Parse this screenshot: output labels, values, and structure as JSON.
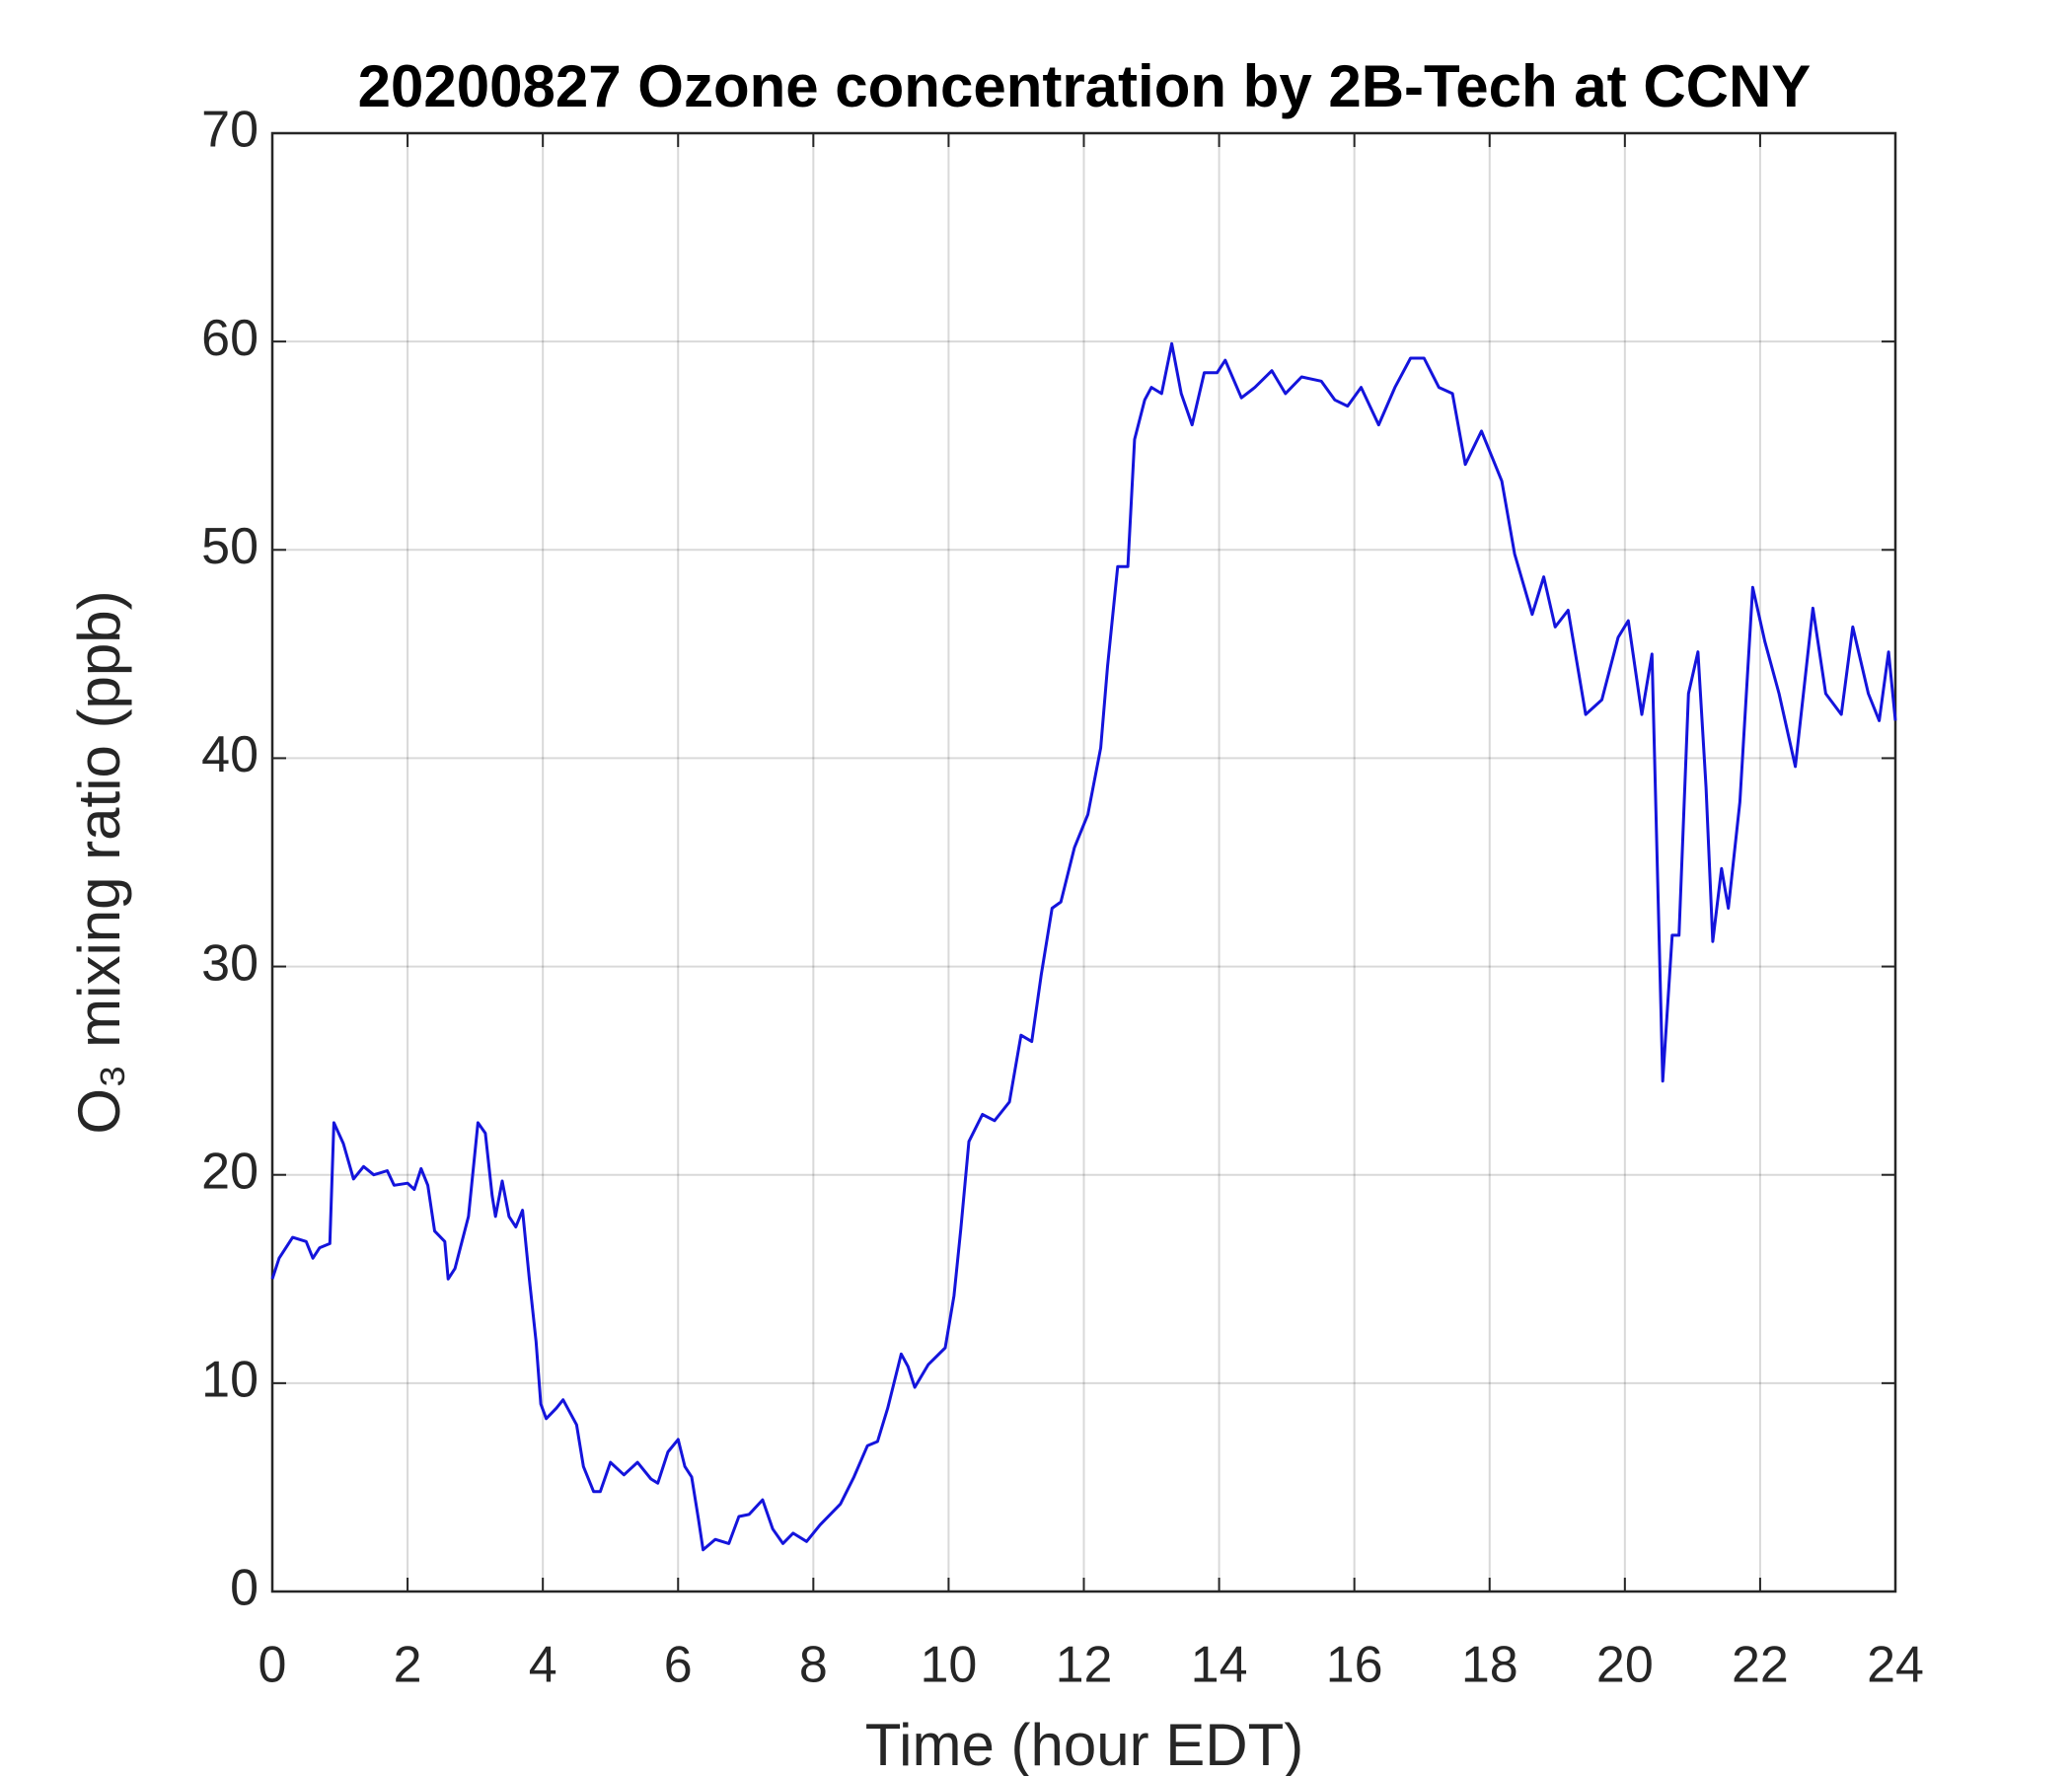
{
  "chart_data": {
    "type": "line",
    "title": "20200827 Ozone concentration by 2B-Tech at CCNY",
    "xlabel": "Time (hour EDT)",
    "ylabel": "O₃ mixing ratio (ppb)",
    "x": [
      0,
      0.1,
      0.3,
      0.5,
      0.6,
      0.7,
      0.85,
      0.91,
      1.05,
      1.2,
      1.35,
      1.5,
      1.7,
      1.8,
      2.0,
      2.1,
      2.2,
      2.3,
      2.4,
      2.55,
      2.6,
      2.7,
      2.9,
      3.04,
      3.15,
      3.25,
      3.3,
      3.4,
      3.5,
      3.6,
      3.7,
      3.8,
      3.9,
      3.97,
      4.05,
      4.2,
      4.3,
      4.5,
      4.6,
      4.75,
      4.85,
      5.0,
      5.2,
      5.4,
      5.6,
      5.7,
      5.85,
      6.0,
      6.1,
      6.2,
      6.3,
      6.37,
      6.55,
      6.75,
      6.9,
      7.05,
      7.25,
      7.4,
      7.55,
      7.7,
      7.9,
      8.1,
      8.4,
      8.6,
      8.8,
      8.95,
      9.1,
      9.3,
      9.4,
      9.5,
      9.7,
      9.95,
      10.08,
      10.18,
      10.3,
      10.5,
      10.68,
      10.9,
      11.07,
      11.23,
      11.37,
      11.53,
      11.66,
      11.86,
      12.06,
      12.25,
      12.35,
      12.5,
      12.65,
      12.75,
      12.9,
      13.0,
      13.15,
      13.3,
      13.44,
      13.6,
      13.78,
      13.97,
      14.09,
      14.33,
      14.53,
      14.78,
      14.98,
      15.22,
      15.51,
      15.71,
      15.9,
      16.1,
      16.36,
      16.6,
      16.83,
      17.03,
      17.25,
      17.45,
      17.64,
      17.88,
      18.18,
      18.37,
      18.63,
      18.8,
      18.97,
      19.16,
      19.42,
      19.66,
      19.9,
      20.05,
      20.25,
      20.4,
      20.56,
      20.7,
      20.8,
      20.94,
      21.08,
      21.2,
      21.3,
      21.43,
      21.53,
      21.7,
      21.89,
      22.07,
      22.28,
      22.52,
      22.78,
      22.97,
      23.2,
      23.37,
      23.6,
      23.76,
      23.9,
      24
    ],
    "series": [
      {
        "name": "O3",
        "color": "#1414dc",
        "values": [
          15,
          16,
          17,
          16.8,
          16,
          16.5,
          16.7,
          22.5,
          21.5,
          19.8,
          20.4,
          20,
          20.2,
          19.5,
          19.6,
          19.3,
          20.3,
          19.5,
          17.3,
          16.8,
          15,
          15.5,
          18,
          22.5,
          22,
          19,
          18,
          19.7,
          18,
          17.5,
          18.3,
          15,
          12,
          9,
          8.3,
          8.8,
          9.2,
          8,
          6,
          4.8,
          4.8,
          6.2,
          5.6,
          6.2,
          5.4,
          5.2,
          6.7,
          7.3,
          6,
          5.5,
          3.5,
          2,
          2.5,
          2.3,
          3.6,
          3.7,
          4.4,
          3,
          2.3,
          2.8,
          2.4,
          3.2,
          4.2,
          5.5,
          7,
          7.2,
          8.8,
          11.4,
          10.8,
          9.8,
          10.9,
          11.7,
          14.2,
          17.4,
          21.6,
          22.9,
          22.6,
          23.5,
          26.7,
          26.4,
          29.6,
          32.8,
          33.1,
          35.7,
          37.3,
          40.5,
          44.4,
          49.2,
          49.2,
          55.3,
          57.2,
          57.8,
          57.5,
          59.9,
          57.5,
          56,
          58.5,
          58.5,
          59.1,
          57.3,
          57.8,
          58.6,
          57.5,
          58.3,
          58.1,
          57.2,
          56.9,
          57.8,
          56,
          57.8,
          59.2,
          59.2,
          57.8,
          57.5,
          54.1,
          55.7,
          53.3,
          49.8,
          46.9,
          48.7,
          46.3,
          47.1,
          42.1,
          42.8,
          45.8,
          46.6,
          42.1,
          45,
          24.5,
          31.5,
          31.5,
          43.1,
          45.1,
          38.6,
          31.2,
          34.7,
          32.8,
          37.9,
          48.2,
          45.6,
          43.1,
          39.6,
          47.2,
          43.1,
          42.1,
          46.3,
          43.1,
          41.8,
          45.1,
          41.8
        ]
      }
    ],
    "xlim": [
      0,
      24
    ],
    "xticks": [
      0,
      2,
      4,
      6,
      8,
      10,
      12,
      14,
      16,
      18,
      20,
      22,
      24
    ],
    "ylim": [
      0,
      70
    ],
    "yticks": [
      0,
      10,
      20,
      30,
      40,
      50,
      60,
      70
    ],
    "grid": true
  }
}
